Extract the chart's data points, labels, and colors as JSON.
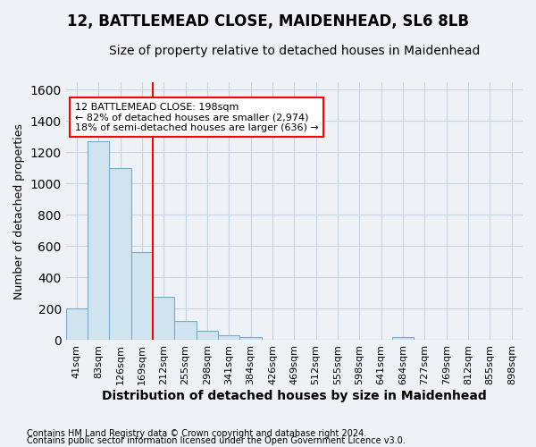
{
  "title": "12, BATTLEMEAD CLOSE, MAIDENHEAD, SL6 8LB",
  "subtitle": "Size of property relative to detached houses in Maidenhead",
  "xlabel": "Distribution of detached houses by size in Maidenhead",
  "ylabel": "Number of detached properties",
  "footnote1": "Contains HM Land Registry data © Crown copyright and database right 2024.",
  "footnote2": "Contains public sector information licensed under the Open Government Licence v3.0.",
  "bar_labels": [
    "41sqm",
    "83sqm",
    "126sqm",
    "169sqm",
    "212sqm",
    "255sqm",
    "298sqm",
    "341sqm",
    "384sqm",
    "426sqm",
    "469sqm",
    "512sqm",
    "555sqm",
    "598sqm",
    "641sqm",
    "684sqm",
    "727sqm",
    "769sqm",
    "812sqm",
    "855sqm",
    "898sqm"
  ],
  "bar_values": [
    200,
    1270,
    1100,
    560,
    275,
    125,
    60,
    30,
    20,
    0,
    0,
    0,
    0,
    0,
    0,
    20,
    0,
    0,
    0,
    0,
    0
  ],
  "bar_color": "#d0e4f0",
  "bar_edge_color": "#7aaac8",
  "ylim": [
    0,
    1650
  ],
  "yticks": [
    0,
    200,
    400,
    600,
    800,
    1000,
    1200,
    1400,
    1600
  ],
  "annotation_title": "12 BATTLEMEAD CLOSE: 198sqm",
  "annotation_line1": "← 82% of detached houses are smaller (2,974)",
  "annotation_line2": "18% of semi-detached houses are larger (636) →",
  "annotation_box_color": "white",
  "annotation_box_edgecolor": "red",
  "redline_color": "red",
  "redline_bin_index": 4,
  "background_color": "#eef2f7",
  "grid_color": "#c8d4e0",
  "title_fontsize": 12,
  "subtitle_fontsize": 10,
  "ylabel_fontsize": 9,
  "xlabel_fontsize": 10,
  "tick_fontsize": 8,
  "footnote_fontsize": 7
}
